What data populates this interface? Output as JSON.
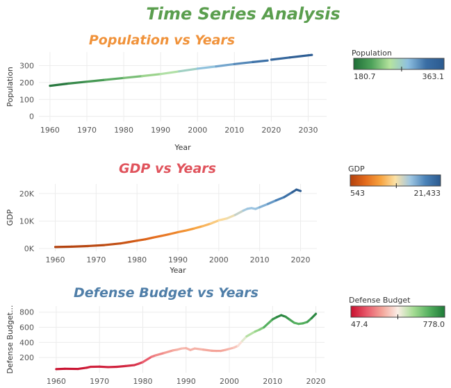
{
  "main_title": "Time Series Analysis",
  "colors": {
    "main_title": "#5a9e4e",
    "population_title": "#f0923a",
    "gdp_title": "#e0535c",
    "defense_title": "#4f7ea8"
  },
  "chart_data": [
    {
      "type": "line",
      "title": "Population vs Years",
      "xlabel": "Year",
      "ylabel": "Population",
      "xlim": [
        1957,
        2035
      ],
      "ylim": [
        -30,
        380
      ],
      "xticks": [
        1960,
        1970,
        1980,
        1990,
        2000,
        2010,
        2020,
        2030
      ],
      "yticks": [
        0,
        100,
        200,
        300
      ],
      "ytick_labels": [
        "0",
        "100",
        "200",
        "300"
      ],
      "series": [
        {
          "x": [
            1960,
            1965,
            1970,
            1975,
            1980,
            1985,
            1990,
            1995,
            2000,
            2005,
            2010,
            2015,
            2019
          ],
          "y": [
            180.7,
            194,
            205,
            216,
            227,
            238,
            250,
            266,
            282,
            295,
            309,
            321,
            330
          ]
        },
        {
          "x": [
            2020,
            2025,
            2031
          ],
          "y": [
            335,
            348,
            363.1
          ]
        }
      ],
      "colorscale": [
        "#1e6e37",
        "#4fa35b",
        "#b6e49e",
        "#8ec0e0",
        "#3a6ea5",
        "#2b5a8f"
      ],
      "legend": {
        "title": "Population",
        "min_label": "180.7",
        "max_label": "363.1",
        "marker_fraction": 0.53
      }
    },
    {
      "type": "line",
      "title": "GDP vs Years",
      "xlabel": "Year",
      "ylabel": "GDP",
      "xlim": [
        1956,
        2024
      ],
      "ylim": [
        -1000,
        23500
      ],
      "xticks": [
        1960,
        1970,
        1980,
        1990,
        2000,
        2010,
        2020
      ],
      "yticks": [
        0,
        10000,
        20000
      ],
      "ytick_labels": [
        "0K",
        "10K",
        "20K"
      ],
      "series": [
        {
          "x": [
            1960,
            1964,
            1968,
            1972,
            1976,
            1978,
            1980,
            1982,
            1984,
            1986,
            1988,
            1990,
            1992,
            1994,
            1996,
            1998,
            2000,
            2002,
            2004,
            2006,
            2007,
            2008,
            2009,
            2010,
            2012,
            2014,
            2016,
            2018,
            2019,
            2020
          ],
          "y": [
            543,
            680,
            900,
            1250,
            1850,
            2350,
            2860,
            3350,
            4000,
            4600,
            5250,
            5950,
            6550,
            7300,
            8100,
            9050,
            10250,
            10950,
            12200,
            13800,
            14450,
            14700,
            14400,
            15000,
            16200,
            17500,
            18700,
            20500,
            21433,
            20950
          ]
        }
      ],
      "colorscale": [
        "#b2410e",
        "#e36a1c",
        "#f7a23e",
        "#fbe1a5",
        "#9ec6e2",
        "#4a82b8",
        "#2b5a8f"
      ],
      "legend": {
        "title": "GDP",
        "min_label": "543",
        "max_label": "21,433",
        "marker_fraction": 0.51
      }
    },
    {
      "type": "line",
      "title": "Defense Budget vs Years",
      "xlabel": "",
      "ylabel": "Defense Budget...",
      "xlim": [
        1956,
        2022
      ],
      "ylim": [
        0,
        880
      ],
      "xticks": [
        1960,
        1970,
        1980,
        1990,
        2000,
        2010,
        2020
      ],
      "yticks": [
        200,
        400,
        600,
        800
      ],
      "ytick_labels": [
        "200",
        "400",
        "600",
        "800"
      ],
      "series": [
        {
          "x": [
            1960,
            1962,
            1965,
            1967,
            1968,
            1970,
            1972,
            1974,
            1976,
            1978,
            1979,
            1980,
            1982,
            1983,
            1985,
            1987,
            1988,
            1989,
            1990,
            1991,
            1992,
            1994,
            1996,
            1997,
            1998,
            1999,
            2000,
            2001,
            2002,
            2003,
            2004,
            2006,
            2007,
            2008,
            2010,
            2011,
            2012,
            2013,
            2014,
            2015,
            2016,
            2017,
            2018,
            2019,
            2020
          ],
          "y": [
            47.4,
            52,
            50,
            66,
            78,
            80,
            74,
            78,
            88,
            100,
            118,
            140,
            210,
            230,
            262,
            295,
            305,
            320,
            325,
            300,
            320,
            305,
            290,
            288,
            288,
            300,
            315,
            330,
            355,
            420,
            480,
            545,
            570,
            600,
            705,
            735,
            760,
            740,
            700,
            660,
            645,
            652,
            670,
            720,
            778
          ]
        }
      ],
      "colorscale": [
        "#c8102e",
        "#e8586a",
        "#f4a59a",
        "#fbeee6",
        "#a4dc93",
        "#55b05f",
        "#1e7a38"
      ],
      "legend": {
        "title": "Defense Budget",
        "min_label": "47.4",
        "max_label": "778.0",
        "marker_fraction": 0.5
      }
    }
  ]
}
